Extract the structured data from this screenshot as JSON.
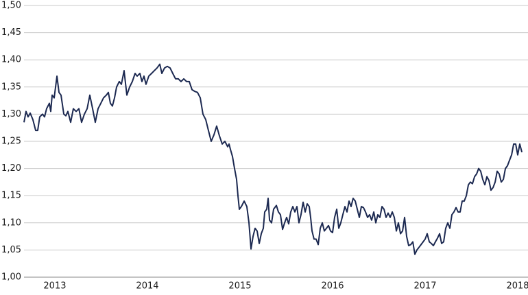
{
  "chart_data": {
    "type": "line",
    "color": "#1c2951",
    "grid": true,
    "xlim": [
      2012.667,
      2018.111
    ],
    "xticks": [
      2013,
      2014,
      2015,
      2016,
      2017,
      2018
    ],
    "ylim": [
      1.0,
      1.5
    ],
    "yticks": [
      {
        "value": 1.0,
        "label": "1,00"
      },
      {
        "value": 1.05,
        "label": "1,05"
      },
      {
        "value": 1.1,
        "label": "1,10"
      },
      {
        "value": 1.15,
        "label": "1,15"
      },
      {
        "value": 1.2,
        "label": "1,20"
      },
      {
        "value": 1.25,
        "label": "1,25"
      },
      {
        "value": 1.3,
        "label": "1,30"
      },
      {
        "value": 1.35,
        "label": "1,35"
      },
      {
        "value": 1.4,
        "label": "1,40"
      },
      {
        "value": 1.45,
        "label": "1,45"
      },
      {
        "value": 1.5,
        "label": "1,50"
      }
    ],
    "x": [
      2012.667,
      2012.689,
      2012.711,
      2012.734,
      2012.763,
      2012.793,
      2012.815,
      2012.837,
      2012.867,
      2012.889,
      2012.911,
      2012.941,
      2012.956,
      2012.971,
      2012.993,
      2013.023,
      2013.045,
      2013.067,
      2013.097,
      2013.119,
      2013.141,
      2013.171,
      2013.2,
      2013.23,
      2013.26,
      2013.289,
      2013.319,
      2013.349,
      2013.378,
      2013.408,
      2013.437,
      2013.467,
      2013.497,
      2013.526,
      2013.556,
      2013.578,
      2013.6,
      2013.622,
      2013.645,
      2013.667,
      2013.696,
      2013.719,
      2013.748,
      2013.778,
      2013.808,
      2013.837,
      2013.867,
      2013.889,
      2013.919,
      2013.941,
      2013.963,
      2013.985,
      2014.015,
      2014.045,
      2014.074,
      2014.104,
      2014.134,
      2014.156,
      2014.185,
      2014.215,
      2014.245,
      2014.274,
      2014.304,
      2014.334,
      2014.363,
      2014.393,
      2014.423,
      2014.452,
      2014.482,
      2014.511,
      2014.541,
      2014.571,
      2014.6,
      2014.63,
      2014.659,
      2014.689,
      2014.719,
      2014.748,
      2014.778,
      2014.808,
      2014.837,
      2014.867,
      2014.882,
      2014.897,
      2014.919,
      2014.941,
      2014.963,
      2014.978,
      2014.993,
      2015.015,
      2015.045,
      2015.074,
      2015.097,
      2015.119,
      2015.141,
      2015.163,
      2015.185,
      2015.208,
      2015.23,
      2015.252,
      2015.267,
      2015.289,
      2015.304,
      2015.319,
      2015.341,
      2015.363,
      2015.393,
      2015.415,
      2015.437,
      2015.46,
      2015.482,
      2015.504,
      2015.526,
      2015.548,
      2015.571,
      2015.593,
      2015.615,
      2015.637,
      2015.659,
      2015.682,
      2015.704,
      2015.726,
      2015.748,
      2015.763,
      2015.778,
      2015.8,
      2015.822,
      2015.845,
      2015.867,
      2015.889,
      2015.911,
      2015.934,
      2015.956,
      2015.978,
      2016.0,
      2016.022,
      2016.045,
      2016.067,
      2016.089,
      2016.111,
      2016.134,
      2016.156,
      2016.178,
      2016.2,
      2016.222,
      2016.245,
      2016.267,
      2016.289,
      2016.311,
      2016.334,
      2016.356,
      2016.378,
      2016.4,
      2016.422,
      2016.445,
      2016.467,
      2016.489,
      2016.511,
      2016.534,
      2016.556,
      2016.578,
      2016.6,
      2016.622,
      2016.645,
      2016.667,
      2016.689,
      2016.711,
      2016.734,
      2016.756,
      2016.778,
      2016.8,
      2016.822,
      2016.845,
      2016.867,
      2016.889,
      2016.911,
      2016.934,
      2016.956,
      2016.978,
      2017.0,
      2017.022,
      2017.045,
      2017.067,
      2017.089,
      2017.111,
      2017.134,
      2017.156,
      2017.178,
      2017.2,
      2017.222,
      2017.245,
      2017.267,
      2017.289,
      2017.311,
      2017.334,
      2017.356,
      2017.378,
      2017.4,
      2017.422,
      2017.445,
      2017.467,
      2017.489,
      2017.511,
      2017.534,
      2017.556,
      2017.578,
      2017.6,
      2017.622,
      2017.645,
      2017.667,
      2017.689,
      2017.711,
      2017.734,
      2017.756,
      2017.778,
      2017.8,
      2017.822,
      2017.845,
      2017.867,
      2017.889,
      2017.911,
      2017.934,
      2017.956,
      2017.978,
      2018.0,
      2018.022,
      2018.045
    ],
    "values": [
      1.285,
      1.305,
      1.295,
      1.302,
      1.29,
      1.27,
      1.27,
      1.295,
      1.3,
      1.295,
      1.31,
      1.32,
      1.305,
      1.335,
      1.33,
      1.37,
      1.34,
      1.335,
      1.3,
      1.297,
      1.305,
      1.285,
      1.31,
      1.305,
      1.31,
      1.285,
      1.3,
      1.31,
      1.335,
      1.31,
      1.285,
      1.31,
      1.32,
      1.33,
      1.335,
      1.34,
      1.32,
      1.315,
      1.33,
      1.35,
      1.36,
      1.355,
      1.38,
      1.335,
      1.35,
      1.36,
      1.375,
      1.37,
      1.375,
      1.36,
      1.37,
      1.355,
      1.37,
      1.375,
      1.38,
      1.385,
      1.392,
      1.375,
      1.385,
      1.388,
      1.385,
      1.375,
      1.365,
      1.365,
      1.36,
      1.365,
      1.36,
      1.36,
      1.345,
      1.342,
      1.34,
      1.33,
      1.3,
      1.29,
      1.27,
      1.25,
      1.262,
      1.278,
      1.26,
      1.245,
      1.25,
      1.24,
      1.245,
      1.235,
      1.222,
      1.2,
      1.18,
      1.15,
      1.125,
      1.13,
      1.14,
      1.13,
      1.1,
      1.052,
      1.075,
      1.09,
      1.085,
      1.062,
      1.08,
      1.09,
      1.12,
      1.125,
      1.145,
      1.105,
      1.1,
      1.125,
      1.132,
      1.12,
      1.115,
      1.088,
      1.1,
      1.11,
      1.098,
      1.12,
      1.13,
      1.12,
      1.13,
      1.1,
      1.115,
      1.138,
      1.12,
      1.135,
      1.13,
      1.11,
      1.085,
      1.07,
      1.07,
      1.06,
      1.09,
      1.1,
      1.085,
      1.09,
      1.095,
      1.085,
      1.082,
      1.11,
      1.125,
      1.09,
      1.1,
      1.115,
      1.13,
      1.12,
      1.14,
      1.13,
      1.145,
      1.14,
      1.125,
      1.11,
      1.13,
      1.128,
      1.12,
      1.11,
      1.115,
      1.105,
      1.12,
      1.1,
      1.115,
      1.11,
      1.13,
      1.125,
      1.11,
      1.118,
      1.11,
      1.12,
      1.11,
      1.085,
      1.1,
      1.08,
      1.085,
      1.11,
      1.075,
      1.058,
      1.06,
      1.065,
      1.042,
      1.05,
      1.055,
      1.06,
      1.065,
      1.07,
      1.08,
      1.065,
      1.062,
      1.058,
      1.065,
      1.072,
      1.08,
      1.062,
      1.065,
      1.09,
      1.1,
      1.09,
      1.115,
      1.12,
      1.128,
      1.12,
      1.12,
      1.14,
      1.14,
      1.15,
      1.17,
      1.175,
      1.172,
      1.185,
      1.19,
      1.2,
      1.195,
      1.18,
      1.17,
      1.185,
      1.178,
      1.16,
      1.165,
      1.175,
      1.195,
      1.19,
      1.175,
      1.18,
      1.2,
      1.205,
      1.215,
      1.225,
      1.245,
      1.245,
      1.225,
      1.245,
      1.23
    ]
  }
}
